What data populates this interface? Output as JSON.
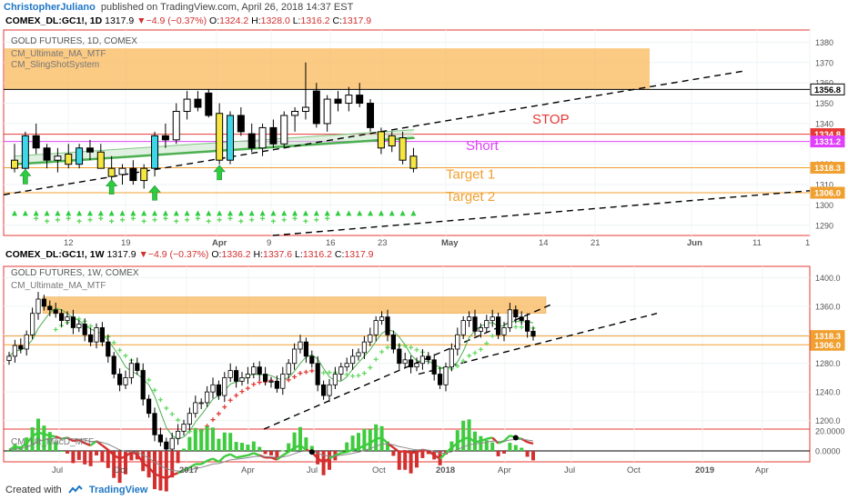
{
  "header": {
    "author": "ChristopherJuliano",
    "published": "published on TradingView.com, April 26, 2018 14:37 EST"
  },
  "footer": {
    "created_with": "Created with",
    "brand": "TradingView"
  },
  "colors": {
    "up": "#ffffff",
    "down": "#000000",
    "highlight_yellow": "#f5e642",
    "highlight_cyan": "#3fd6e8",
    "highlight_green": "#66bb6a",
    "resistance_zone": "#f9b85a",
    "stop": "#e53935",
    "short": "#e040fb",
    "target": "#f0a030",
    "ma_green": "#4caf50",
    "ma_red": "#e53935",
    "macd_green": "#3ecb3e",
    "macd_red": "#d32f2f"
  },
  "chart_data": [
    {
      "type": "candlestick",
      "symbol_line": {
        "symbol": "COMEX_DL:GC1!, 1D",
        "last": "1317.9",
        "change": "−4.9 (−0.37%)",
        "open_label": "O:",
        "open": "1324.2",
        "high_label": "H:",
        "high": "1328.0",
        "low_label": "L:",
        "low": "1316.2",
        "close_label": "C:",
        "close": "1317.9"
      },
      "title": "GOLD FUTURES, 1D, COMEX",
      "indicators": [
        "CM_Ultimate_MA_MTF",
        "CM_SlingShotSystem"
      ],
      "y_ticks": [
        1290,
        1300,
        1310,
        1320,
        1330,
        1340,
        1350,
        1360,
        1370,
        1380
      ],
      "ylim": [
        1285,
        1386
      ],
      "x_ticks": [
        "12",
        "19",
        "Apr",
        "9",
        "16",
        "23",
        "May",
        "14",
        "21",
        "Jun",
        "11",
        "1"
      ],
      "price_labels": [
        {
          "label": "1356.8",
          "value": 1356.8,
          "bg": "#ffffff",
          "fg": "#000000"
        },
        {
          "label": "1334.8",
          "value": 1334.8,
          "bg": "#e53935",
          "fg": "#ffffff"
        },
        {
          "label": "1331.2",
          "value": 1331.2,
          "bg": "#e040fb",
          "fg": "#ffffff"
        },
        {
          "label": "1318.3",
          "value": 1318.3,
          "bg": "#f0a030",
          "fg": "#ffffff"
        },
        {
          "label": "1306.0",
          "value": 1306.0,
          "bg": "#f0a030",
          "fg": "#ffffff"
        }
      ],
      "annotations": [
        {
          "text": "STOP",
          "value": 1340,
          "color": "#e53935"
        },
        {
          "text": "Short",
          "value": 1327,
          "color": "#e040fb"
        },
        {
          "text": "Target 1",
          "value": 1313,
          "color": "#f0a030"
        },
        {
          "text": "Target 2",
          "value": 1302,
          "color": "#f0a030"
        }
      ],
      "resistance_zone": [
        1357,
        1377
      ],
      "candles": [
        {
          "o": 1322,
          "h": 1330,
          "l": 1316,
          "c": 1318,
          "hl": "y"
        },
        {
          "o": 1318,
          "h": 1336,
          "l": 1315,
          "c": 1334,
          "hl": "c"
        },
        {
          "o": 1334,
          "h": 1340,
          "l": 1325,
          "c": 1328
        },
        {
          "o": 1328,
          "h": 1330,
          "l": 1318,
          "c": 1322
        },
        {
          "o": 1322,
          "h": 1328,
          "l": 1316,
          "c": 1324
        },
        {
          "o": 1325,
          "h": 1330,
          "l": 1318,
          "c": 1320,
          "hl": "y"
        },
        {
          "o": 1320,
          "h": 1330,
          "l": 1318,
          "c": 1328,
          "hl": "c"
        },
        {
          "o": 1328,
          "h": 1332,
          "l": 1322,
          "c": 1326
        },
        {
          "o": 1326,
          "h": 1330,
          "l": 1318,
          "c": 1318,
          "hl": "y"
        },
        {
          "o": 1318,
          "h": 1324,
          "l": 1312,
          "c": 1314,
          "hl": "y"
        },
        {
          "o": 1315,
          "h": 1320,
          "l": 1310,
          "c": 1318
        },
        {
          "o": 1318,
          "h": 1322,
          "l": 1310,
          "c": 1312
        },
        {
          "o": 1312,
          "h": 1320,
          "l": 1308,
          "c": 1318,
          "hl": "y"
        },
        {
          "o": 1318,
          "h": 1336,
          "l": 1314,
          "c": 1334,
          "hl": "c"
        },
        {
          "o": 1334,
          "h": 1340,
          "l": 1328,
          "c": 1332
        },
        {
          "o": 1332,
          "h": 1350,
          "l": 1330,
          "c": 1346
        },
        {
          "o": 1346,
          "h": 1356,
          "l": 1342,
          "c": 1352
        },
        {
          "o": 1352,
          "h": 1356,
          "l": 1346,
          "c": 1348
        },
        {
          "o": 1355,
          "h": 1357,
          "l": 1343,
          "c": 1344
        },
        {
          "o": 1345,
          "h": 1350,
          "l": 1320,
          "c": 1322,
          "hl": "y"
        },
        {
          "o": 1322,
          "h": 1346,
          "l": 1320,
          "c": 1344,
          "hl": "c"
        },
        {
          "o": 1344,
          "h": 1348,
          "l": 1334,
          "c": 1336
        },
        {
          "o": 1335,
          "h": 1340,
          "l": 1326,
          "c": 1328
        },
        {
          "o": 1328,
          "h": 1340,
          "l": 1324,
          "c": 1338
        },
        {
          "o": 1338,
          "h": 1342,
          "l": 1328,
          "c": 1330
        },
        {
          "o": 1330,
          "h": 1346,
          "l": 1328,
          "c": 1344
        },
        {
          "o": 1344,
          "h": 1348,
          "l": 1336,
          "c": 1346
        },
        {
          "o": 1346,
          "h": 1370,
          "l": 1342,
          "c": 1348
        },
        {
          "o": 1356,
          "h": 1360,
          "l": 1338,
          "c": 1340
        },
        {
          "o": 1340,
          "h": 1354,
          "l": 1336,
          "c": 1352
        },
        {
          "o": 1352,
          "h": 1356,
          "l": 1346,
          "c": 1350
        },
        {
          "o": 1350,
          "h": 1358,
          "l": 1346,
          "c": 1354
        },
        {
          "o": 1354,
          "h": 1360,
          "l": 1348,
          "c": 1350
        },
        {
          "o": 1350,
          "h": 1352,
          "l": 1336,
          "c": 1338
        },
        {
          "o": 1336,
          "h": 1338,
          "l": 1325,
          "c": 1328,
          "hl": "y"
        },
        {
          "o": 1329,
          "h": 1336,
          "l": 1326,
          "c": 1334,
          "hl": "y"
        },
        {
          "o": 1333,
          "h": 1336,
          "l": 1320,
          "c": 1322,
          "hl": "y"
        },
        {
          "o": 1324,
          "h": 1328,
          "l": 1316,
          "c": 1318,
          "hl": "y"
        }
      ],
      "arrows": [
        {
          "i": 1,
          "value": 1313
        },
        {
          "i": 9,
          "value": 1308
        },
        {
          "i": 19,
          "value": 1315
        },
        {
          "i": 13,
          "value": 1305
        }
      ]
    },
    {
      "type": "candlestick",
      "symbol_line": {
        "symbol": "COMEX_DL:GC1!, 1W",
        "last": "1317.9",
        "change": "−4.9 (−0.37%)",
        "open_label": "O:",
        "open": "1336.2",
        "high_label": "H:",
        "high": "1337.6",
        "low_label": "L:",
        "low": "1316.2",
        "close_label": "C:",
        "close": "1317.9"
      },
      "title": "GOLD FUTURES, 1W, COMEX",
      "indicators": [
        "CM_Ultimate_MA_MTF"
      ],
      "y_ticks": [
        1200,
        1240,
        1280,
        1320,
        1360,
        1400
      ],
      "ylim": [
        1188,
        1412
      ],
      "x_ticks": [
        "Jul",
        "Oct",
        "2017",
        "Apr",
        "Jul",
        "Oct",
        "2018",
        "Apr",
        "Jul",
        "Oct",
        "2019",
        "Apr"
      ],
      "price_labels": [
        {
          "label": "1318.3",
          "value": 1318.3,
          "bg": "#f0a030",
          "fg": "#ffffff"
        },
        {
          "label": "1306.0",
          "value": 1306.0,
          "bg": "#f0a030",
          "fg": "#ffffff"
        }
      ],
      "resistance_zone": [
        1350,
        1373
      ],
      "closes": [
        1290,
        1305,
        1300,
        1320,
        1350,
        1370,
        1360,
        1355,
        1350,
        1340,
        1345,
        1330,
        1335,
        1320,
        1310,
        1330,
        1310,
        1290,
        1265,
        1250,
        1260,
        1280,
        1270,
        1230,
        1210,
        1180,
        1170,
        1160,
        1175,
        1185,
        1195,
        1210,
        1225,
        1225,
        1240,
        1250,
        1235,
        1260,
        1270,
        1255,
        1260,
        1265,
        1275,
        1265,
        1255,
        1255,
        1245,
        1265,
        1280,
        1300,
        1310,
        1290,
        1280,
        1250,
        1235,
        1250,
        1265,
        1275,
        1280,
        1290,
        1295,
        1310,
        1320,
        1340,
        1345,
        1320,
        1300,
        1280,
        1285,
        1275,
        1280,
        1290,
        1285,
        1265,
        1250,
        1275,
        1300,
        1320,
        1340,
        1345,
        1325,
        1330,
        1340,
        1345,
        1320,
        1330,
        1355,
        1345,
        1340,
        1325,
        1318
      ],
      "macd": {
        "label": "CM_Ult_MacD_MTF",
        "y_ticks": [
          "20.0000",
          "0.0000"
        ],
        "ylim": [
          -12,
          24
        ]
      }
    }
  ]
}
